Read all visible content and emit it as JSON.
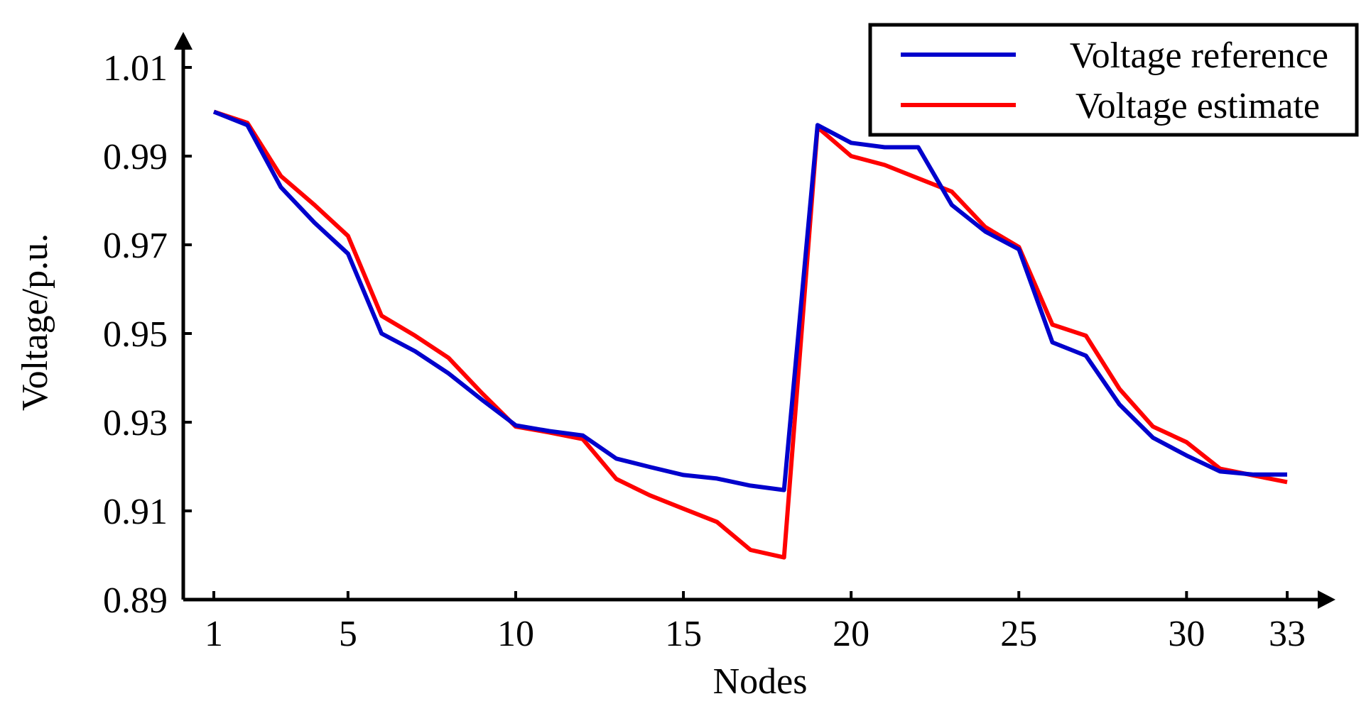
{
  "chart_data": {
    "type": "line",
    "xlabel": "Nodes",
    "ylabel": "Voltage/p.u.",
    "xlim": [
      0.3,
      33
    ],
    "ylim": [
      0.89,
      1.01
    ],
    "x_ticks": [
      1,
      5,
      10,
      15,
      20,
      25,
      30,
      33
    ],
    "y_ticks": [
      1.01,
      0.99,
      0.97,
      0.95,
      0.93,
      0.91,
      0.89
    ],
    "y_tick_labels": [
      "1.01",
      "0.99",
      "0.97",
      "0.95",
      "0.93",
      "0.91",
      "0.89"
    ],
    "grid": false,
    "legend_position": "top-right",
    "x": [
      1,
      2,
      3,
      4,
      5,
      6,
      7,
      8,
      9,
      10,
      11,
      12,
      13,
      14,
      15,
      16,
      17,
      18,
      19,
      20,
      21,
      22,
      23,
      24,
      25,
      26,
      27,
      28,
      29,
      30,
      31,
      32,
      33
    ],
    "series": [
      {
        "name": "Voltage reference",
        "color": "#0000cc",
        "values": [
          1.0,
          0.997,
          0.983,
          0.975,
          0.968,
          0.95,
          0.946,
          0.941,
          0.935,
          0.9293,
          0.928,
          0.927,
          0.9218,
          0.9199,
          0.9181,
          0.9173,
          0.9157,
          0.9147,
          0.997,
          0.993,
          0.992,
          0.992,
          0.979,
          0.973,
          0.969,
          0.948,
          0.945,
          0.934,
          0.9265,
          0.9225,
          0.9189,
          0.9182,
          0.9182
        ]
      },
      {
        "name": "Voltage estimate",
        "color": "#ff0000",
        "values": [
          1.0,
          0.9975,
          0.9855,
          0.979,
          0.972,
          0.954,
          0.9495,
          0.9445,
          0.9365,
          0.929,
          0.9277,
          0.9262,
          0.9172,
          0.9135,
          0.9105,
          0.9075,
          0.9012,
          0.8995,
          0.9965,
          0.99,
          0.988,
          0.985,
          0.982,
          0.974,
          0.9695,
          0.952,
          0.9495,
          0.9375,
          0.929,
          0.9255,
          0.9195,
          0.918,
          0.9165
        ]
      }
    ]
  }
}
